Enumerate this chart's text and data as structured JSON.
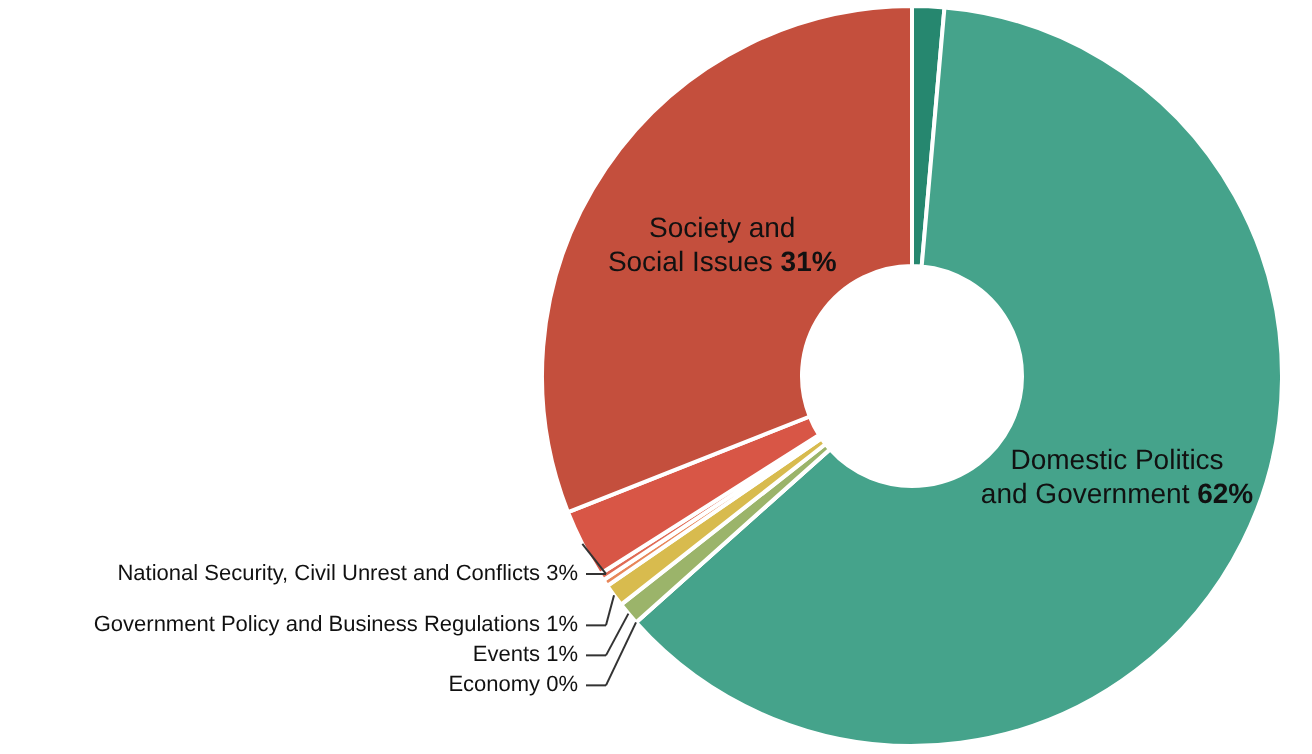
{
  "chart_data": {
    "type": "donut",
    "categories": [
      null,
      "Domestic Politics and Government",
      "Economy",
      "Events",
      "Government Policy and Business Regulations",
      null,
      null,
      "National Security, Civil Unrest and Conflicts",
      "Society and Social Issues"
    ],
    "values": [
      1.4,
      62,
      0,
      1,
      1,
      0.3,
      0.3,
      3,
      31
    ],
    "value_labels": [
      null,
      "62%",
      "0%",
      "1%",
      "1%",
      null,
      null,
      "3%",
      "31%"
    ],
    "colors": [
      "#26876f",
      "#45a38b",
      "#3f9c86",
      "#9bb46a",
      "#d8bb4e",
      "#e8875a",
      "#e06b55",
      "#d85646",
      "#c44f3d"
    ]
  }
}
